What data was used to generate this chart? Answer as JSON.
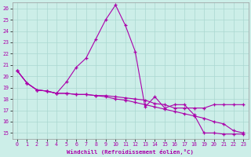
{
  "xlabel": "Windchill (Refroidissement éolien,°C)",
  "background_color": "#cceee8",
  "grid_color": "#aad8d0",
  "line_color": "#aa00aa",
  "ylim": [
    14.5,
    26.5
  ],
  "xlim": [
    -0.5,
    23.5
  ],
  "yticks": [
    15,
    16,
    17,
    18,
    19,
    20,
    21,
    22,
    23,
    24,
    25,
    26
  ],
  "xticks": [
    0,
    1,
    2,
    3,
    4,
    5,
    6,
    7,
    8,
    9,
    10,
    11,
    12,
    13,
    14,
    15,
    16,
    17,
    18,
    19,
    20,
    21,
    22,
    23
  ],
  "series1_x": [
    0,
    1,
    2,
    3,
    4,
    5,
    6,
    7,
    8,
    9,
    10,
    11,
    12,
    13,
    14,
    15,
    16,
    17,
    18,
    19,
    20,
    21,
    22,
    23
  ],
  "series1_y": [
    20.5,
    19.4,
    18.8,
    18.7,
    18.5,
    19.5,
    20.8,
    21.6,
    23.3,
    25.0,
    26.3,
    24.5,
    22.2,
    17.3,
    18.2,
    17.2,
    17.5,
    17.5,
    16.6,
    15.0,
    15.0,
    14.9,
    14.9,
    14.9
  ],
  "series2_x": [
    0,
    1,
    2,
    3,
    4,
    5,
    6,
    7,
    8,
    9,
    10,
    11,
    12,
    13,
    14,
    15,
    16,
    17,
    18,
    19,
    20,
    21,
    22,
    23
  ],
  "series2_y": [
    20.5,
    19.4,
    18.8,
    18.7,
    18.5,
    18.5,
    18.4,
    18.4,
    18.3,
    18.3,
    18.2,
    18.1,
    18.0,
    17.9,
    17.6,
    17.5,
    17.2,
    17.2,
    17.2,
    17.2,
    17.5,
    17.5,
    17.5,
    17.5
  ],
  "series3_x": [
    0,
    1,
    2,
    3,
    4,
    5,
    6,
    7,
    8,
    9,
    10,
    11,
    12,
    13,
    14,
    15,
    16,
    17,
    18,
    19,
    20,
    21,
    22,
    23
  ],
  "series3_y": [
    20.5,
    19.4,
    18.8,
    18.7,
    18.5,
    18.5,
    18.4,
    18.4,
    18.3,
    18.2,
    18.0,
    17.9,
    17.7,
    17.5,
    17.3,
    17.1,
    16.9,
    16.7,
    16.5,
    16.3,
    16.0,
    15.8,
    15.2,
    15.0
  ]
}
